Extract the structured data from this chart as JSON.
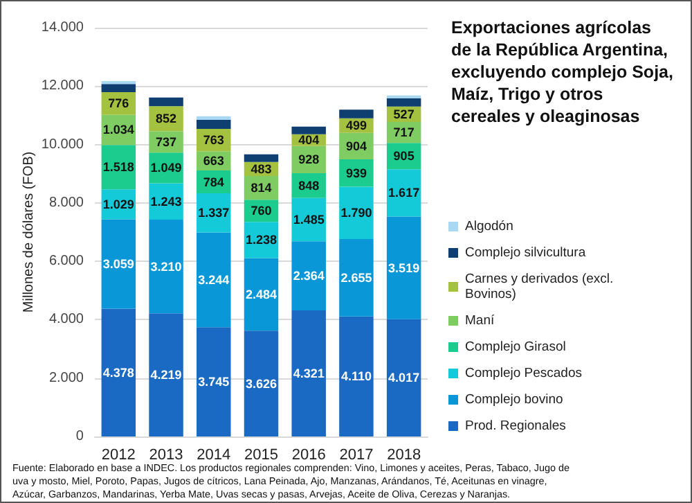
{
  "chart_data": {
    "type": "bar",
    "stacked": true,
    "title": "Exportaciones agrícolas de la República Argentina, excluyendo complejo Soja, Maíz, Trigo y otros cereales y oleaginosas",
    "ylabel": "Millones de dólares (FOB)",
    "categories": [
      "2012",
      "2013",
      "2014",
      "2015",
      "2016",
      "2017",
      "2018"
    ],
    "ylim": [
      0,
      14000
    ],
    "yticks": [
      {
        "value": 0,
        "label": "0"
      },
      {
        "value": 2000,
        "label": "2.000"
      },
      {
        "value": 4000,
        "label": "4.000"
      },
      {
        "value": 6000,
        "label": "6.000"
      },
      {
        "value": 8000,
        "label": "8.000"
      },
      {
        "value": 10000,
        "label": "10.000"
      },
      {
        "value": 12000,
        "label": "12.000"
      },
      {
        "value": 14000,
        "label": "14.000"
      }
    ],
    "grid": "y",
    "legend": "right",
    "series": [
      {
        "name": "Prod. Regionales",
        "color": "#1a6ac4",
        "values": [
          4378,
          4219,
          3745,
          3626,
          4321,
          4110,
          4017
        ],
        "value_labels": [
          "4.378",
          "4.219",
          "3.745",
          "3.626",
          "4.321",
          "4.110",
          "4.017"
        ]
      },
      {
        "name": "Complejo bovino",
        "color": "#0a97d8",
        "values": [
          3059,
          3210,
          3244,
          2484,
          2364,
          2655,
          3519
        ],
        "value_labels": [
          "3.059",
          "3.210",
          "3.244",
          "2.484",
          "2.364",
          "2.655",
          "3.519"
        ]
      },
      {
        "name": "Complejo Pescados",
        "color": "#14cad8",
        "values": [
          1029,
          1243,
          1337,
          1238,
          1485,
          1790,
          1617
        ],
        "value_labels": [
          "1.029",
          "1.243",
          "1.337",
          "1.238",
          "1.485",
          "1.790",
          "1.617"
        ]
      },
      {
        "name": "Complejo Girasol",
        "color": "#1ccb8e",
        "values": [
          1518,
          1049,
          784,
          760,
          848,
          939,
          905
        ],
        "value_labels": [
          "1.518",
          "1.049",
          "784",
          "760",
          "848",
          "939",
          "905"
        ]
      },
      {
        "name": "Maní",
        "color": "#7fcc62",
        "values": [
          1034,
          737,
          663,
          814,
          928,
          904,
          717
        ],
        "value_labels": [
          "1.034",
          "737",
          "663",
          "814",
          "928",
          "904",
          "717"
        ]
      },
      {
        "name": "Carnes y derivados (excl. Bovinos)",
        "color": "#a5c140",
        "values": [
          776,
          852,
          763,
          483,
          404,
          499,
          527
        ],
        "value_labels": [
          "776",
          "852",
          "763",
          "483",
          "404",
          "499",
          "527"
        ]
      },
      {
        "name": "Complejo silvicultura",
        "color": "#0f3f70",
        "values": [
          280,
          300,
          310,
          260,
          260,
          300,
          280
        ]
      },
      {
        "name": "Algodón",
        "color": "#a9d9f2",
        "values": [
          100,
          null,
          120,
          null,
          null,
          null,
          100
        ]
      }
    ],
    "annotations": [
      "Fuente: Elaborado en base a INDEC. Los productos regionales comprenden: Vino, Limones y aceites, Peras, Tabaco, Jugo de uva y mosto, Miel, Poroto, Papas, Jugos de cítricos, Lana Peinada, Ajo, Manzanas, Arándanos, Té, Aceitunas en vinagre, Azúcar, Garbanzos, Mandarinas, Yerba Mate, Uvas secas y pasas, Arvejas, Aceite de Oliva, Cerezas y Naranjas."
    ]
  }
}
